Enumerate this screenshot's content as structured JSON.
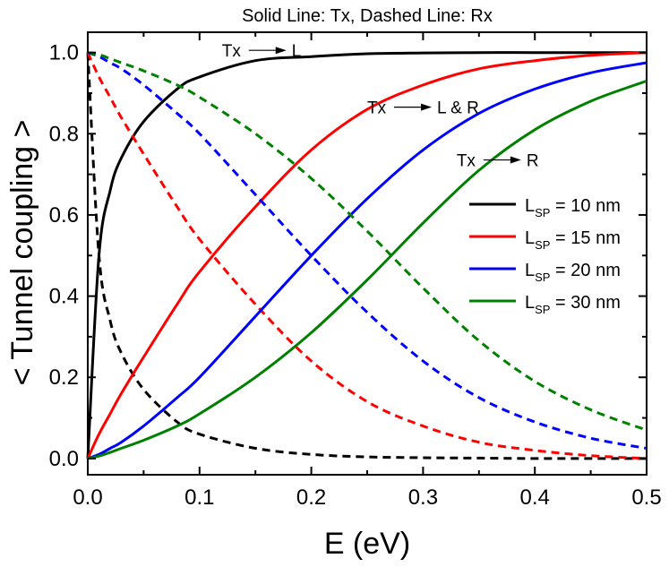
{
  "chart_data": {
    "type": "line",
    "title": "Solid Line: Tx, Dashed Line: Rx",
    "xlabel": "E (eV)",
    "ylabel": "< Tunnel coupling >",
    "xlim": [
      0.0,
      0.5
    ],
    "ylim": [
      -0.04,
      1.05
    ],
    "xticks": [
      "0.0",
      "0.1",
      "0.2",
      "0.3",
      "0.4",
      "0.5"
    ],
    "yticks": [
      "0.0",
      "0.2",
      "0.4",
      "0.6",
      "0.8",
      "1.0"
    ],
    "legend": {
      "placement": "right",
      "entries": [
        {
          "prefix": "L",
          "sub": "SP",
          "suffix": " = 10 nm",
          "color": "#000000"
        },
        {
          "prefix": "L",
          "sub": "SP",
          "suffix": " = 15 nm",
          "color": "#ff0000"
        },
        {
          "prefix": "L",
          "sub": "SP",
          "suffix": " = 20 nm",
          "color": "#0000ff"
        },
        {
          "prefix": "L",
          "sub": "SP",
          "suffix": " = 30 nm",
          "color": "#008000"
        }
      ]
    },
    "annotations": [
      {
        "from": "Tx",
        "to": "L",
        "x": 0.12,
        "y": 0.99
      },
      {
        "from": "Tx",
        "to": "L & R",
        "x": 0.25,
        "y": 0.85
      },
      {
        "from": "Tx",
        "to": "R",
        "x": 0.33,
        "y": 0.72
      }
    ],
    "x": [
      0.0,
      0.01,
      0.02,
      0.03,
      0.05,
      0.08,
      0.1,
      0.15,
      0.2,
      0.25,
      0.3,
      0.35,
      0.4,
      0.45,
      0.5
    ],
    "series": [
      {
        "name": "L_SP = 10 nm Tx",
        "style": "solid",
        "color": "#000000",
        "values": [
          0.0,
          0.5,
          0.66,
          0.74,
          0.83,
          0.91,
          0.94,
          0.98,
          0.99,
          0.997,
          0.999,
          1.0,
          1.0,
          1.0,
          1.0
        ]
      },
      {
        "name": "L_SP = 10 nm Rx",
        "style": "dashed",
        "color": "#000000",
        "values": [
          1.0,
          0.5,
          0.34,
          0.26,
          0.17,
          0.09,
          0.06,
          0.025,
          0.01,
          0.004,
          0.002,
          0.001,
          0.0,
          0.0,
          0.0
        ]
      },
      {
        "name": "L_SP = 15 nm Tx",
        "style": "solid",
        "color": "#ff0000",
        "values": [
          0.0,
          0.06,
          0.11,
          0.16,
          0.25,
          0.38,
          0.46,
          0.62,
          0.76,
          0.86,
          0.92,
          0.96,
          0.98,
          0.993,
          1.0
        ]
      },
      {
        "name": "L_SP = 15 nm Rx",
        "style": "dashed",
        "color": "#ff0000",
        "values": [
          1.0,
          0.94,
          0.89,
          0.84,
          0.75,
          0.62,
          0.54,
          0.38,
          0.24,
          0.14,
          0.08,
          0.04,
          0.02,
          0.007,
          0.0
        ]
      },
      {
        "name": "L_SP = 20 nm Tx",
        "style": "solid",
        "color": "#0000ff",
        "values": [
          0.0,
          0.01,
          0.025,
          0.04,
          0.08,
          0.15,
          0.2,
          0.35,
          0.5,
          0.64,
          0.76,
          0.85,
          0.91,
          0.95,
          0.975
        ]
      },
      {
        "name": "L_SP = 20 nm Rx",
        "style": "dashed",
        "color": "#0000ff",
        "values": [
          1.0,
          0.99,
          0.975,
          0.96,
          0.92,
          0.85,
          0.8,
          0.65,
          0.5,
          0.36,
          0.24,
          0.15,
          0.09,
          0.05,
          0.025
        ]
      },
      {
        "name": "L_SP = 30 nm Tx",
        "style": "solid",
        "color": "#008000",
        "values": [
          0.0,
          0.006,
          0.015,
          0.025,
          0.045,
          0.08,
          0.11,
          0.2,
          0.31,
          0.44,
          0.58,
          0.71,
          0.81,
          0.88,
          0.93
        ]
      },
      {
        "name": "L_SP = 30 nm Rx",
        "style": "dashed",
        "color": "#008000",
        "values": [
          1.0,
          0.995,
          0.985,
          0.975,
          0.955,
          0.92,
          0.89,
          0.8,
          0.69,
          0.56,
          0.42,
          0.29,
          0.19,
          0.12,
          0.07
        ]
      }
    ]
  }
}
